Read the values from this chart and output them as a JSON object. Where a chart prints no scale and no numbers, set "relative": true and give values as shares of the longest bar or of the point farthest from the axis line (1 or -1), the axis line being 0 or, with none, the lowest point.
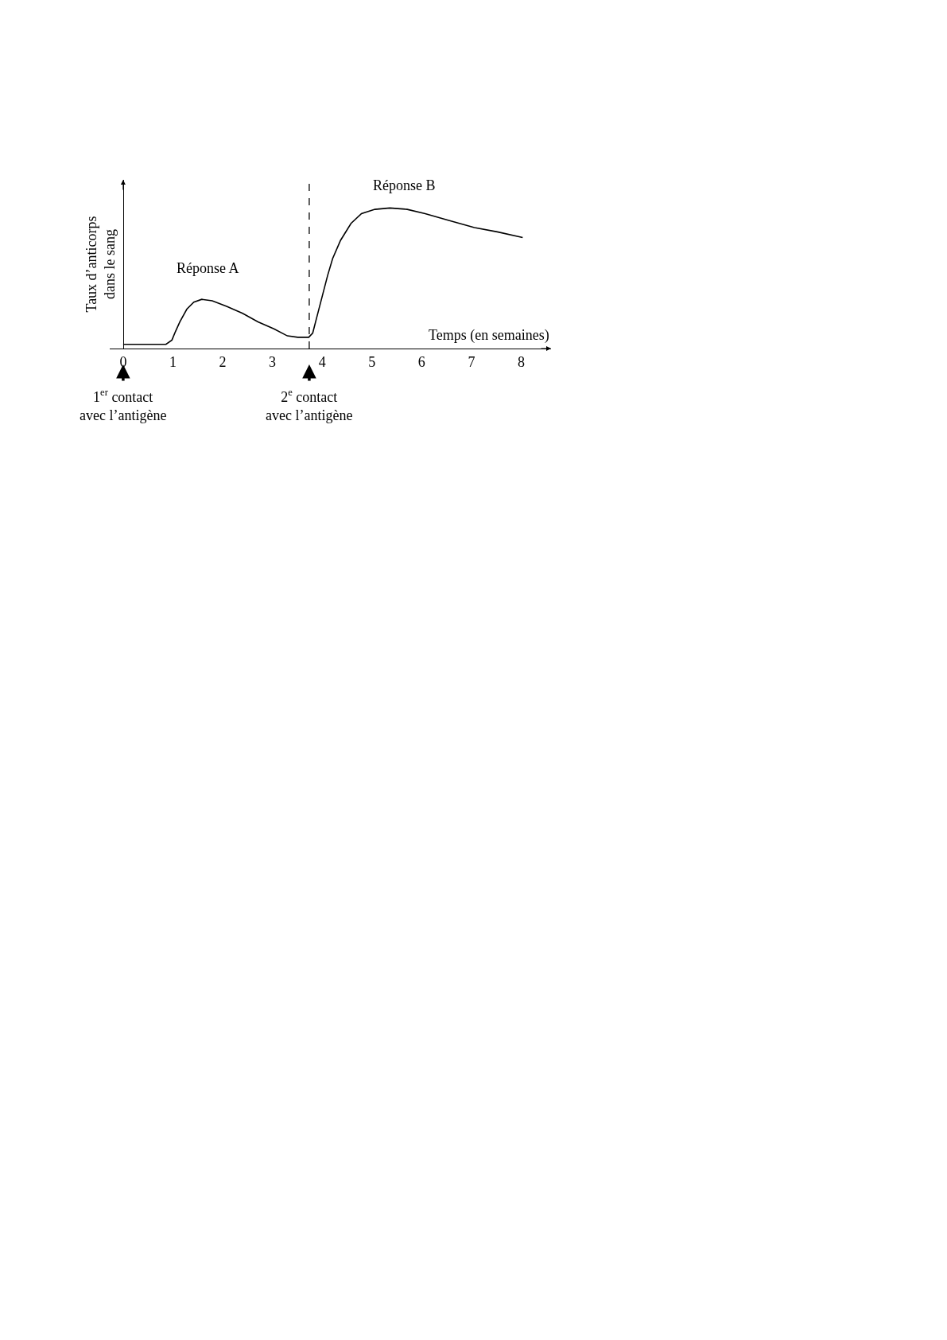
{
  "chart_data": {
    "type": "line",
    "relative": true,
    "xlabel": "Temps (en semaines)",
    "ylabel": "Taux d’anticorps\ndans le sang",
    "x": [
      0,
      0.86,
      0.98,
      1.05,
      1.14,
      1.28,
      1.42,
      1.58,
      1.79,
      2.08,
      2.4,
      2.71,
      3.03,
      3.3,
      3.51,
      3.73,
      3.81,
      3.89,
      4.0,
      4.11,
      4.21,
      4.37,
      4.58,
      4.79,
      5.06,
      5.36,
      5.71,
      6.07,
      6.56,
      7.06,
      7.52,
      8.03
    ],
    "series": [
      {
        "color": "#000000",
        "values": [
          0.03,
          0.03,
          0.06,
          0.12,
          0.19,
          0.28,
          0.33,
          0.35,
          0.34,
          0.3,
          0.25,
          0.19,
          0.14,
          0.09,
          0.08,
          0.08,
          0.11,
          0.22,
          0.37,
          0.52,
          0.64,
          0.77,
          0.89,
          0.96,
          0.99,
          1.0,
          0.99,
          0.96,
          0.91,
          0.86,
          0.83,
          0.79
        ]
      }
    ],
    "xlim": [
      -0.27,
      8.6
    ],
    "xticks": [
      0,
      1,
      2,
      3,
      4,
      5,
      6,
      7,
      8
    ],
    "ref_lines": [
      {
        "axis": "x",
        "value": 3.74,
        "line_style": "dashed",
        "color": "#000000"
      }
    ],
    "annotations": [
      "Réponse A",
      "Réponse B",
      {
        "text": "1$^{er}$ contact\navec l’antigène",
        "x": 0
      },
      {
        "text": "2$^{e}$ contact\navec l’antigène",
        "x": 3.74
      }
    ]
  }
}
